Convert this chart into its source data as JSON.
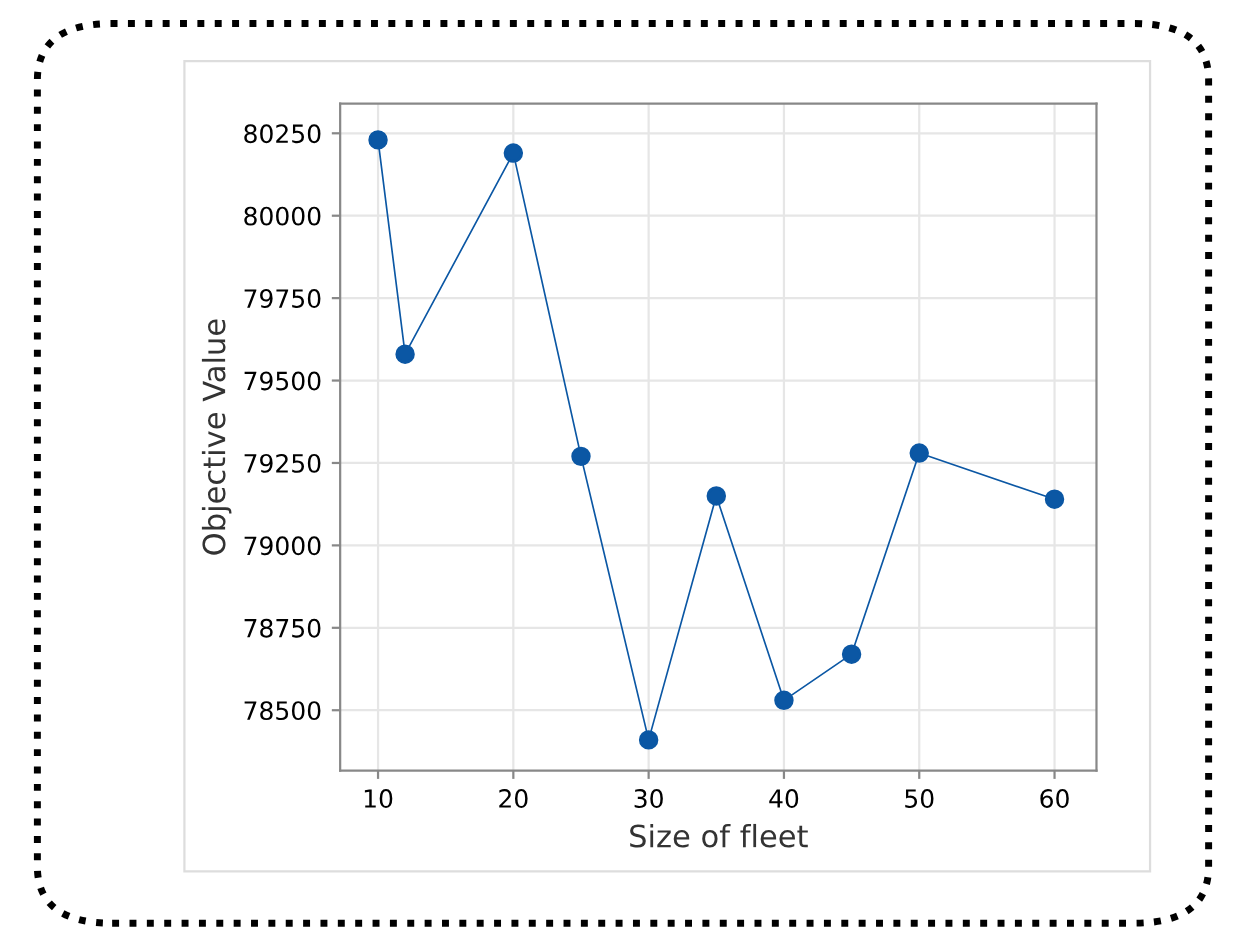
{
  "chart_data": {
    "type": "line",
    "xlabel": "Size of fleet",
    "ylabel": "Objective Value",
    "x": [
      10,
      12,
      20,
      25,
      30,
      35,
      40,
      45,
      50,
      60
    ],
    "series": [
      {
        "color": "#0b57a4",
        "values": [
          80230,
          79580,
          80190,
          79270,
          78410,
          79150,
          78530,
          78670,
          79280,
          79140
        ]
      }
    ],
    "xlim": [
      7.2,
      63.1
    ],
    "ylim": [
      78317,
      80340
    ],
    "xticks": [
      10,
      20,
      30,
      40,
      50,
      60
    ],
    "yticks": [
      78500,
      78750,
      79000,
      79250,
      79500,
      79750,
      80000,
      80250
    ],
    "grid": true,
    "marker": "circle",
    "line_style": "solid"
  }
}
